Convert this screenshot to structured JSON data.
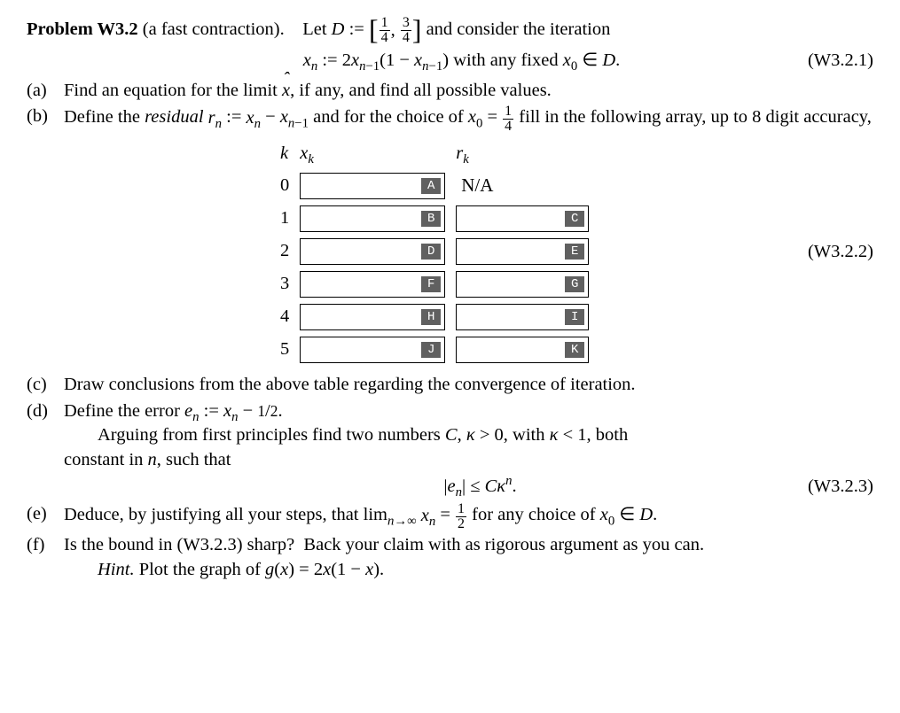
{
  "problem": {
    "number": "Problem W3.2",
    "subtitle": "(a fast contraction).",
    "lead_in": "Let ",
    "D_def_lhs": "D",
    "assign_sym": " := ",
    "interval_l": "1",
    "interval_l_den": "4",
    "interval_r": "3",
    "interval_r_den": "4",
    "after_interval": " and consider the iteration"
  },
  "iteration": {
    "formula_lhs": "xₙ := 2xₙ₋₁(1 − xₙ₋₁)",
    "formula_rhs": " with any fixed x₀ ∈ D.",
    "eq_num": "(W3.2.1)"
  },
  "parts": {
    "a": {
      "label": "(a)",
      "text": "Find an equation for the limit x̂, if any, and find all possible values."
    },
    "b": {
      "label": "(b)",
      "text_pre": "Define the ",
      "residual_word": "residual",
      "text_def": " rₙ := xₙ − xₙ₋₁ and for the choice of x₀ = ",
      "x0_num": "1",
      "x0_den": "4",
      "text_post": " fill in the following array, up to 8 digit accuracy,"
    },
    "c": {
      "label": "(c)",
      "text": "Draw conclusions from the above table regarding the convergence of iteration."
    },
    "d": {
      "label": "(d)",
      "line1_pre": "Define the error ",
      "line1_def": "eₙ := xₙ − ¹⁄₂.",
      "line2": "Arguing from first principles find two numbers C, κ > 0, with κ < 1, both constant in n, such that",
      "ineq": "|eₙ| ≤ Cκⁿ.",
      "eq_num": "(W3.2.3)"
    },
    "e": {
      "label": "(e)",
      "text": "Deduce, by justifying all your steps, that limₙ→∞ xₙ = ½ for any choice of x₀ ∈ D."
    },
    "f": {
      "label": "(f)",
      "text": "Is the bound in (W3.2.3) sharp?  Back your claim with as rigorous argument as you can.",
      "hint_label": "Hint.",
      "hint_text": " Plot the graph of g(x) = 2x(1 − x)."
    }
  },
  "table": {
    "headers": {
      "k": "k",
      "xk": "xₖ",
      "rk": "rₖ"
    },
    "rows": [
      {
        "k": "0",
        "xk_tag": "A",
        "rk_text": "N/A",
        "rk_tag": ""
      },
      {
        "k": "1",
        "xk_tag": "B",
        "rk_text": "",
        "rk_tag": "C"
      },
      {
        "k": "2",
        "xk_tag": "D",
        "rk_text": "",
        "rk_tag": "E"
      },
      {
        "k": "3",
        "xk_tag": "F",
        "rk_text": "",
        "rk_tag": "G"
      },
      {
        "k": "4",
        "xk_tag": "H",
        "rk_text": "",
        "rk_tag": "I"
      },
      {
        "k": "5",
        "xk_tag": "J",
        "rk_text": "",
        "rk_tag": "K"
      }
    ],
    "eq_num": "(W3.2.2)"
  },
  "style": {
    "text_color": "#000000",
    "tag_bg": "#606060",
    "tag_fg": "#ffffff",
    "border_color": "#000000",
    "font_body_pt": 20.5
  }
}
